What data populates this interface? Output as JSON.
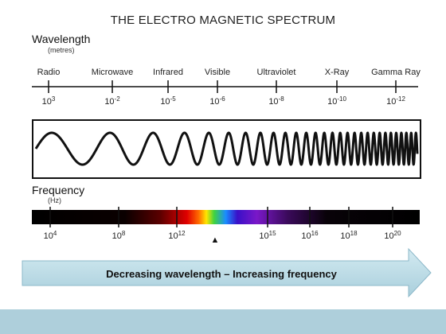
{
  "title": "THE ELECTRO MAGNETIC SPECTRUM",
  "wavelength": {
    "label": "Wavelength",
    "unit": "(metres)",
    "bands": [
      "Radio",
      "Microwave",
      "Infrared",
      "Visible",
      "Ultraviolet",
      "X-Ray",
      "Gamma Ray"
    ],
    "ticks": [
      {
        "base": "10",
        "exp": "3"
      },
      {
        "base": "10",
        "exp": "-2"
      },
      {
        "base": "10",
        "exp": "-5"
      },
      {
        "base": "10",
        "exp": "-6"
      },
      {
        "base": "10",
        "exp": "-8"
      },
      {
        "base": "10",
        "exp": "-10"
      },
      {
        "base": "10",
        "exp": "-12"
      }
    ]
  },
  "frequency": {
    "label": "Frequency",
    "unit": "(Hz)",
    "ticks": [
      {
        "base": "10",
        "exp": "4"
      },
      {
        "base": "10",
        "exp": "8"
      },
      {
        "base": "10",
        "exp": "12"
      },
      {
        "base": "10",
        "exp": "15"
      },
      {
        "base": "10",
        "exp": "16"
      },
      {
        "base": "10",
        "exp": "18"
      },
      {
        "base": "10",
        "exp": "20"
      }
    ],
    "visible_marker": "▲"
  },
  "arrow_text": "Decreasing wavelength – Increasing frequency",
  "colors": {
    "arrow_fill": "#bcdde8",
    "arrow_stroke": "#8cb8c9",
    "band_bottom": "#aecfdb",
    "bar_black": "#050505"
  }
}
